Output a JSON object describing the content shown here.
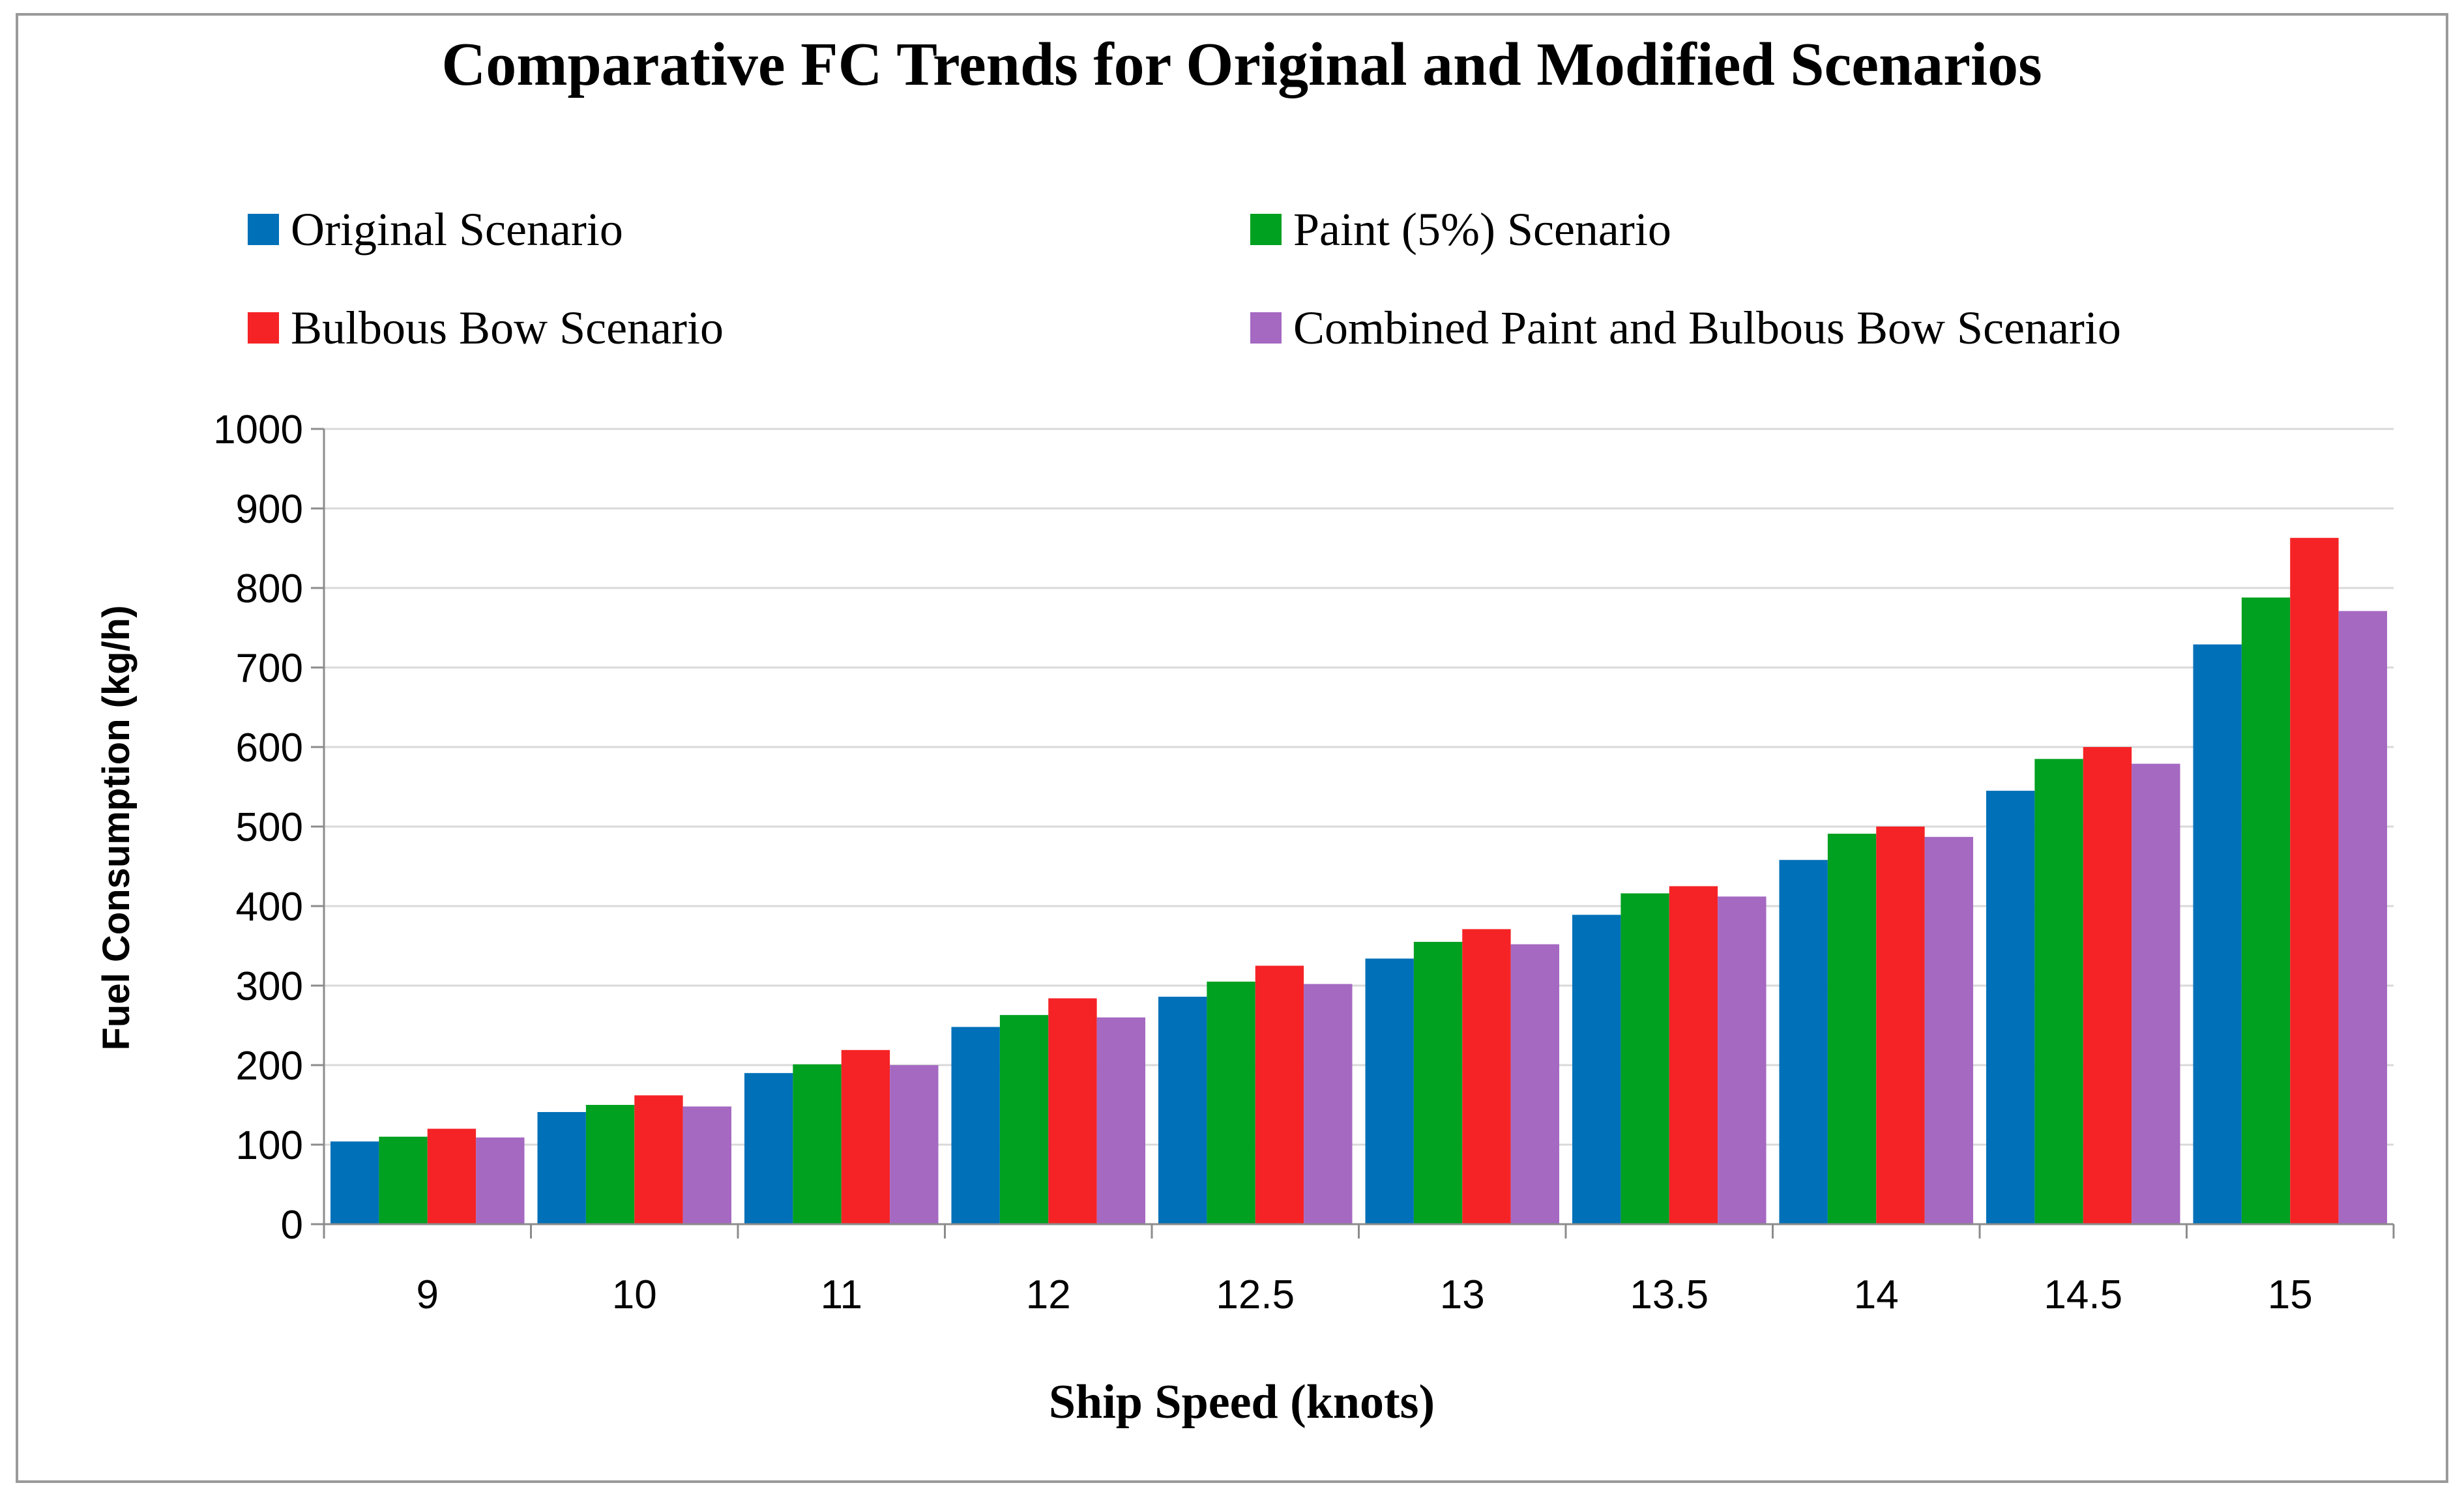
{
  "chart_data": {
    "type": "bar",
    "title": "Comparative FC Trends for Original and Modified Scenarios",
    "xlabel": "Ship Speed (knots)",
    "ylabel": "Fuel Consumption (kg/h)",
    "ylim": [
      0,
      1000
    ],
    "yticks": [
      "0",
      "100",
      "200",
      "300",
      "400",
      "500",
      "600",
      "700",
      "800",
      "900",
      "1000"
    ],
    "grid": true,
    "legend_position": "top",
    "categories": [
      "9",
      "10",
      "11",
      "12",
      "12.5",
      "13",
      "13.5",
      "14",
      "14.5",
      "15"
    ],
    "series": [
      {
        "name": "Original Scenario",
        "color": "#0070b8",
        "values": [
          104,
          141,
          190,
          248,
          286,
          334,
          389,
          458,
          545,
          729
        ]
      },
      {
        "name": "Paint (5%) Scenario",
        "color": "#00a020",
        "values": [
          110,
          150,
          201,
          263,
          305,
          355,
          416,
          491,
          585,
          788
        ]
      },
      {
        "name": "Bulbous Bow Scenario",
        "color": "#f52326",
        "values": [
          120,
          162,
          219,
          284,
          325,
          371,
          425,
          500,
          600,
          863
        ]
      },
      {
        "name": "Combined Paint and Bulbous Bow Scenario",
        "color": "#a569c2",
        "values": [
          109,
          148,
          200,
          260,
          302,
          352,
          412,
          487,
          579,
          771
        ]
      }
    ]
  }
}
